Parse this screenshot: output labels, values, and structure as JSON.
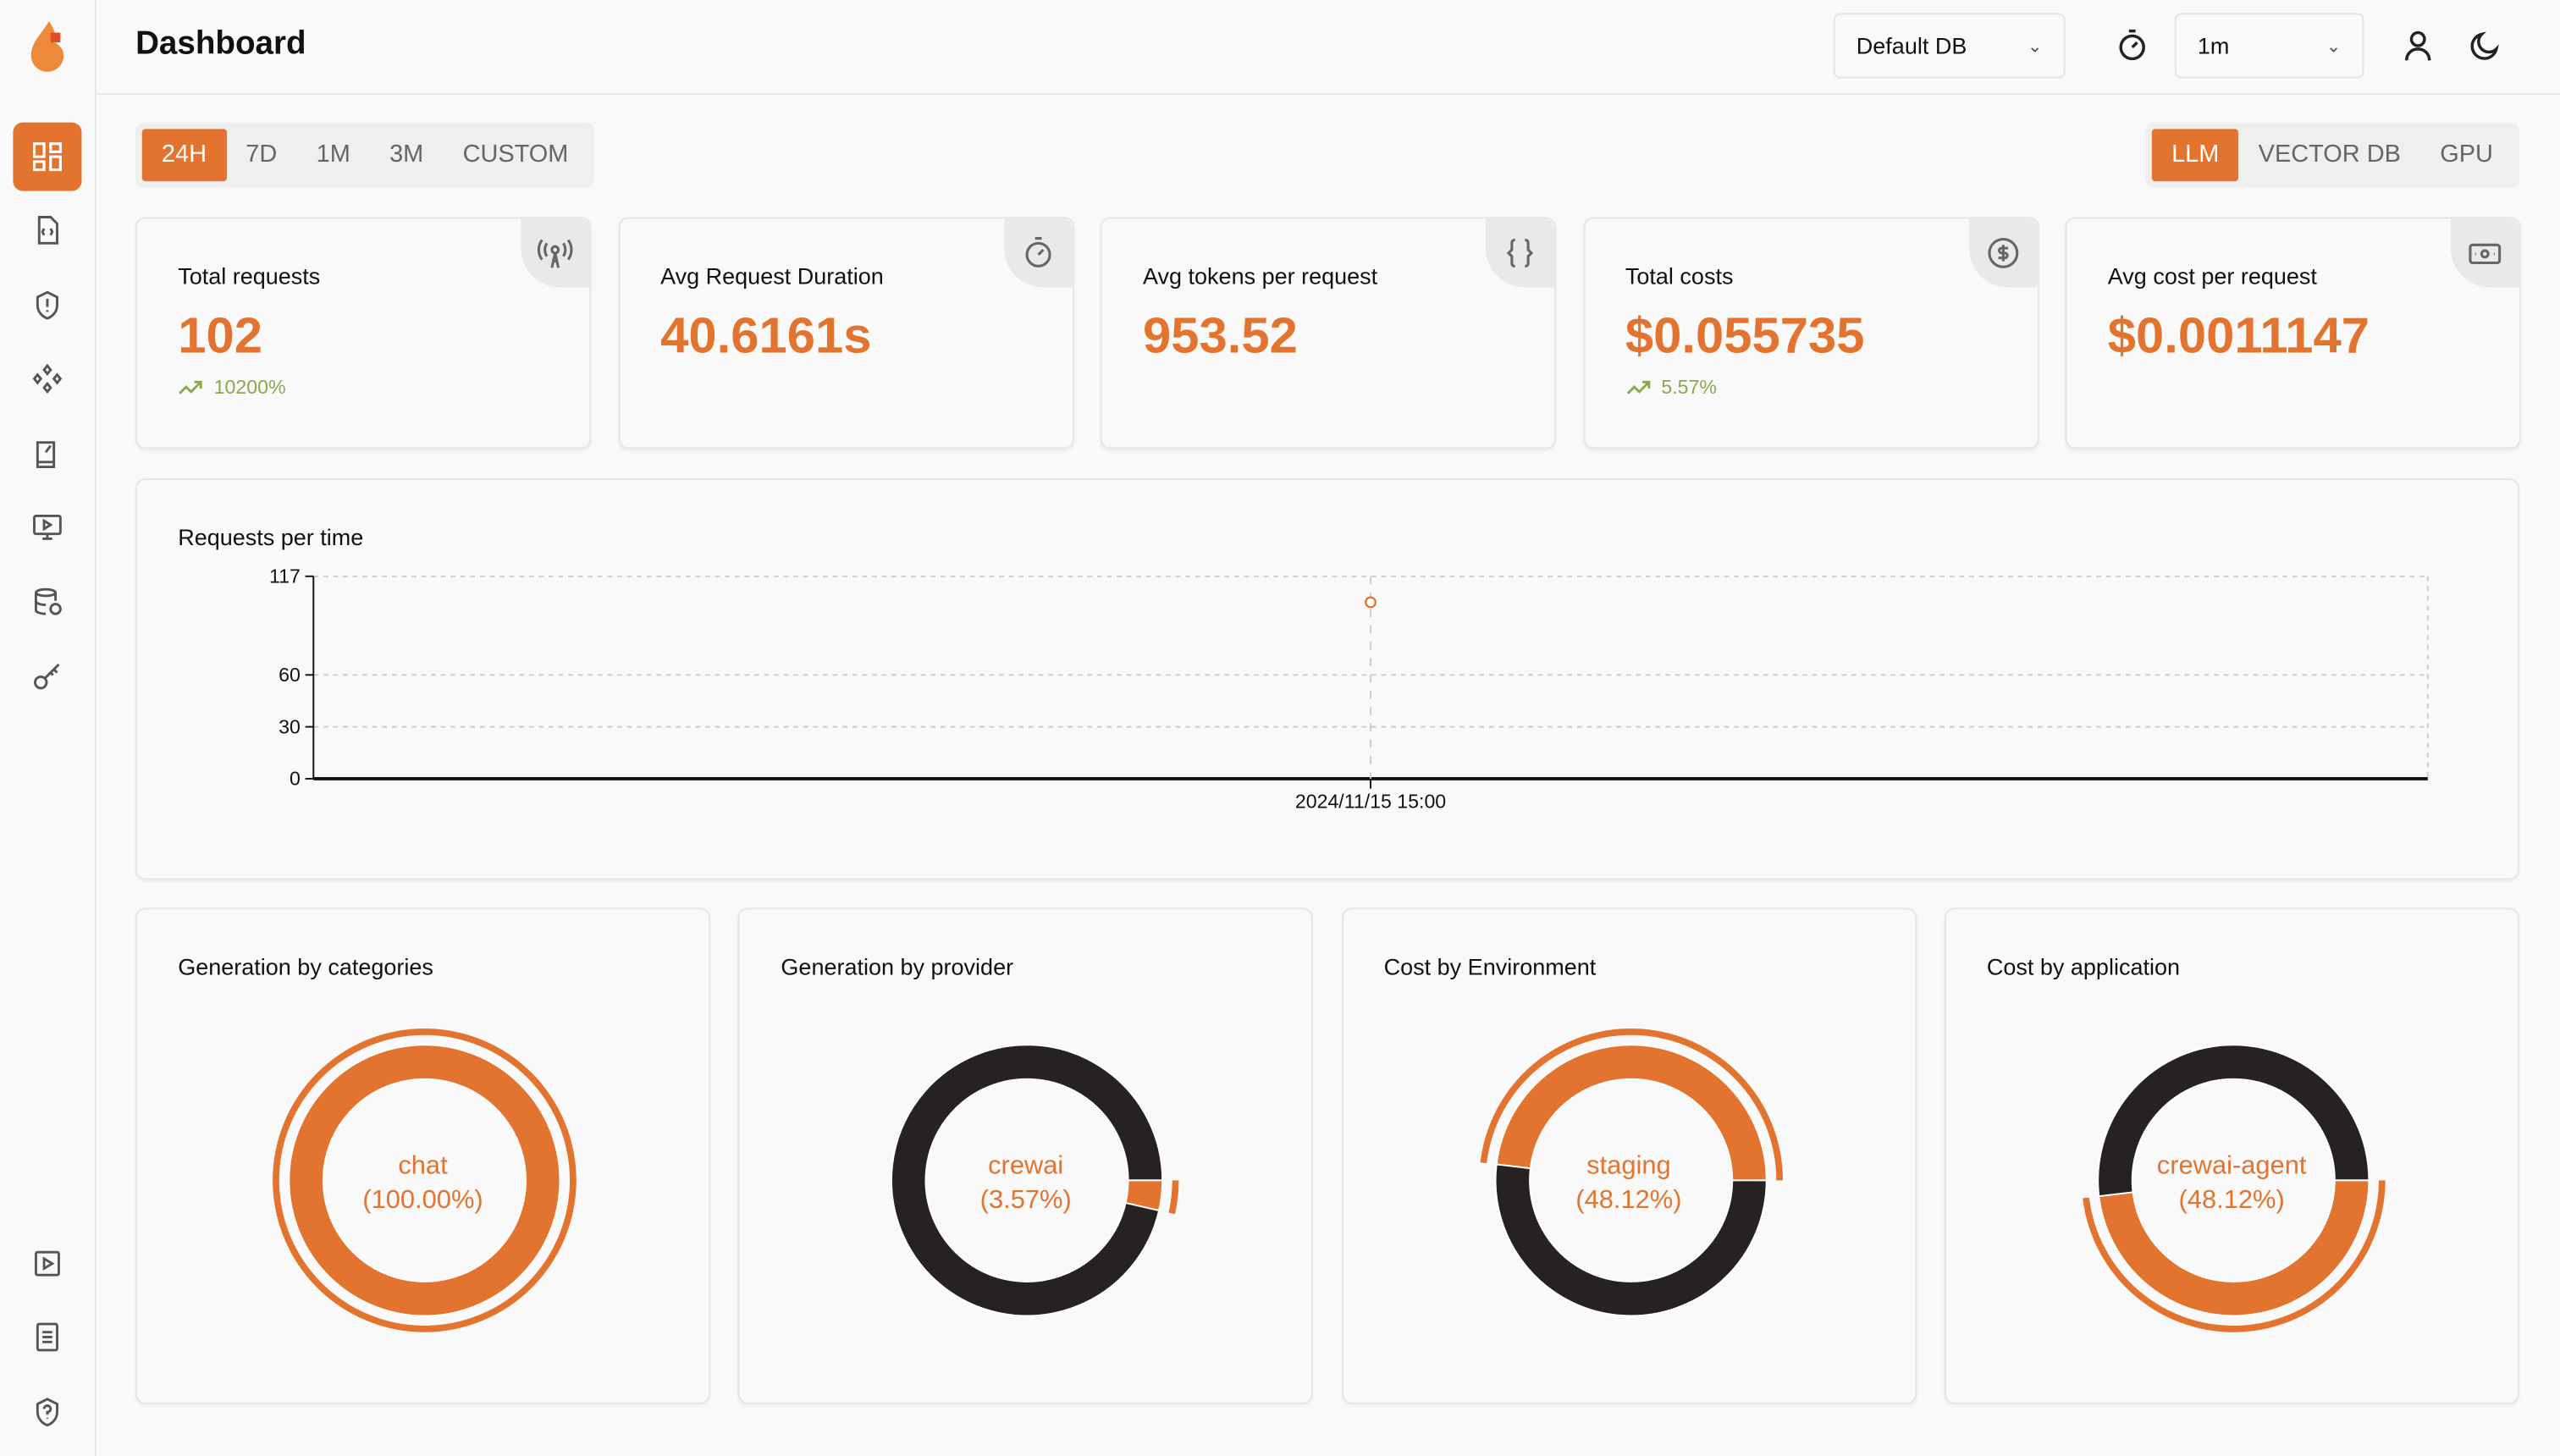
{
  "header": {
    "title": "Dashboard",
    "db_select": "Default DB",
    "refresh_select": "1m"
  },
  "time_ranges": [
    {
      "label": "24H",
      "active": true
    },
    {
      "label": "7D"
    },
    {
      "label": "1M"
    },
    {
      "label": "3M"
    },
    {
      "label": "CUSTOM"
    }
  ],
  "modes": [
    {
      "label": "LLM",
      "active": true
    },
    {
      "label": "VECTOR DB"
    },
    {
      "label": "GPU"
    }
  ],
  "stats": [
    {
      "label": "Total requests",
      "value": "102",
      "trend": "10200%",
      "icon": "broadcast-tower-icon"
    },
    {
      "label": "Avg Request Duration",
      "value": "40.6161s",
      "icon": "timer-icon"
    },
    {
      "label": "Avg tokens per request",
      "value": "953.52",
      "icon": "braces-icon"
    },
    {
      "label": "Total costs",
      "value": "$0.055735",
      "trend": "5.57%",
      "icon": "dollar-circle-icon"
    },
    {
      "label": "Avg cost per request",
      "value": "$0.0011147",
      "icon": "banknote-icon"
    }
  ],
  "colors": {
    "accent": "#e37430",
    "dark": "#262222",
    "trend": "#8aa84e"
  },
  "chart_data": [
    {
      "type": "line",
      "title": "Requests per time",
      "x": [
        "2024/11/15 15:00"
      ],
      "y": [
        102
      ],
      "yticks": [
        0,
        30,
        60,
        117
      ],
      "ylim": [
        0,
        117
      ],
      "grid": true
    },
    {
      "type": "pie",
      "title": "Generation by categories",
      "slices": [
        {
          "name": "chat",
          "value": 100.0
        }
      ],
      "active_label": "chat",
      "active_pct": "(100.00%)"
    },
    {
      "type": "pie",
      "title": "Generation by provider",
      "slices": [
        {
          "value": 96.43
        },
        {
          "name": "crewai",
          "value": 3.57
        }
      ],
      "active_label": "crewai",
      "active_pct": "(3.57%)"
    },
    {
      "type": "pie",
      "title": "Cost by Environment",
      "slices": [
        {
          "name": "staging",
          "value": 48.12
        },
        {
          "value": 51.88
        }
      ],
      "active_label": "staging",
      "active_pct": "(48.12%)"
    },
    {
      "type": "pie",
      "title": "Cost by application",
      "slices": [
        {
          "value": 51.88
        },
        {
          "name": "crewai-agent",
          "value": 48.12
        }
      ],
      "active_label": "crewai-agent",
      "active_pct": "(48.12%)"
    }
  ]
}
